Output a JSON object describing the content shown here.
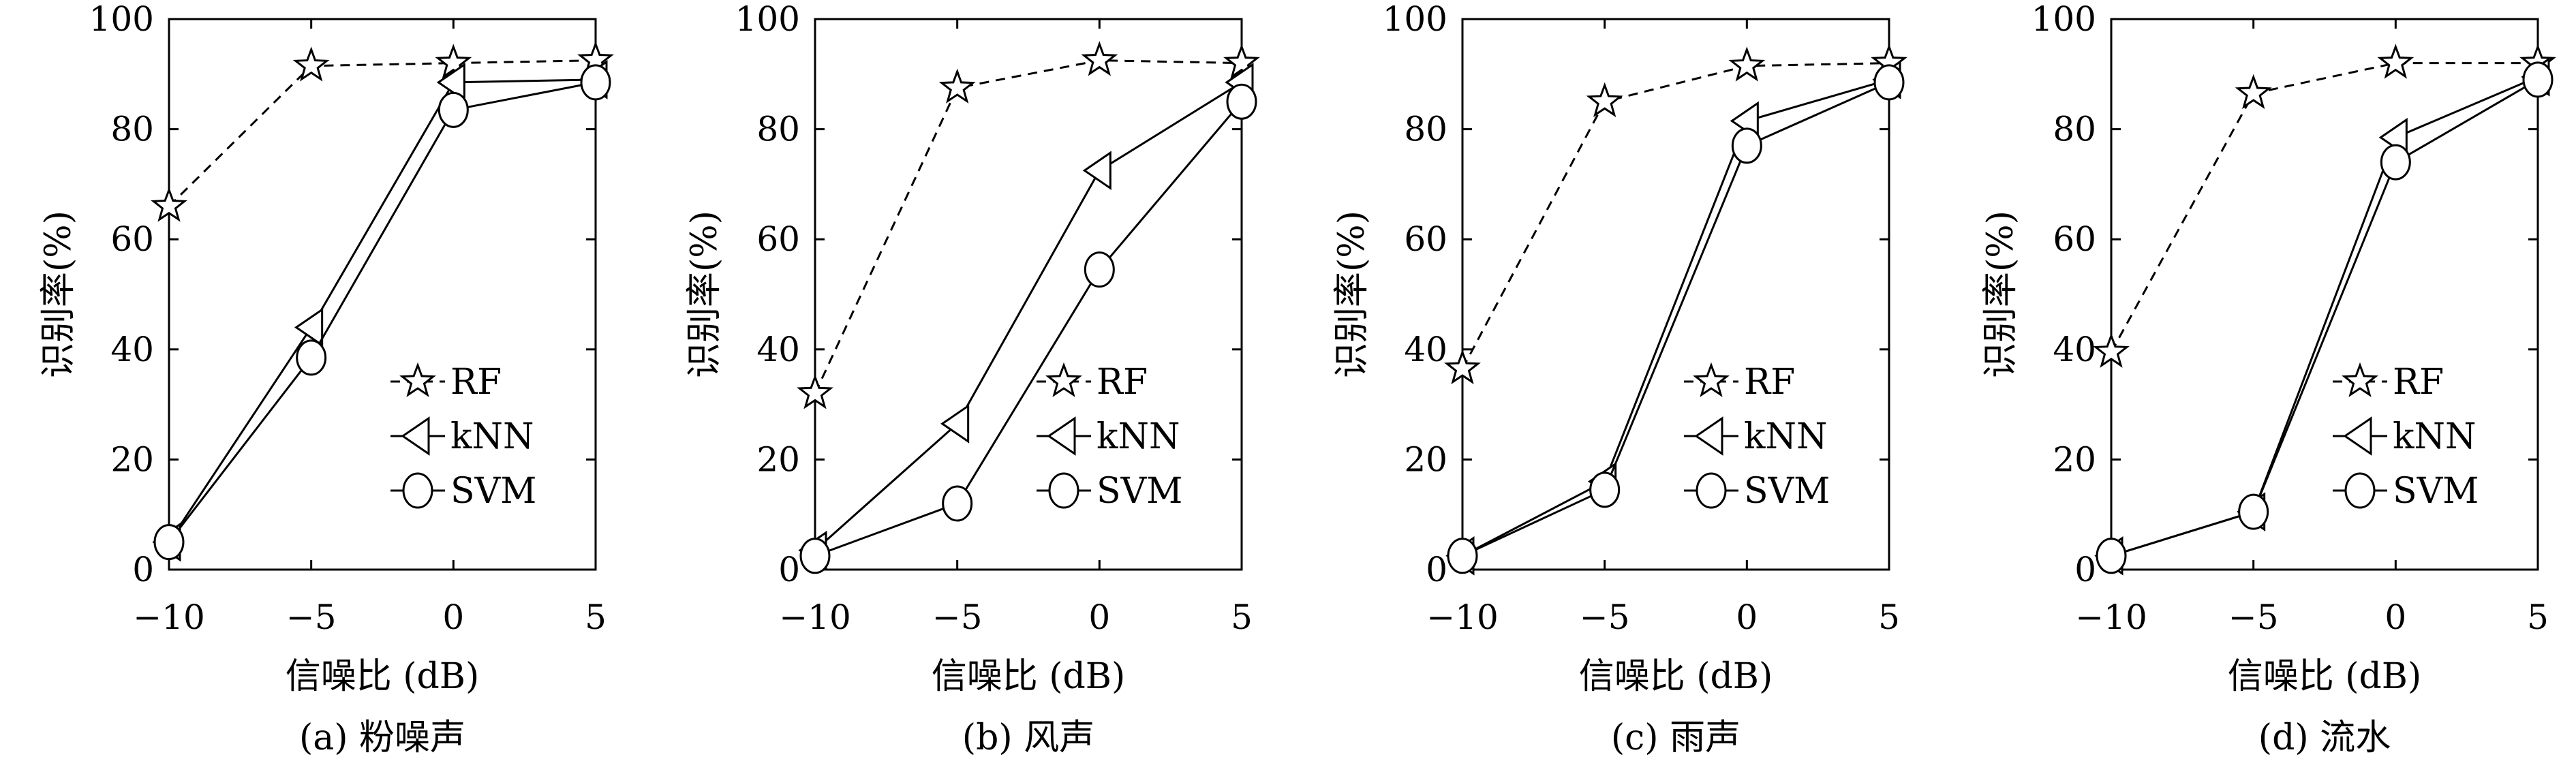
{
  "chart_data": [
    {
      "type": "line",
      "caption": "(a) 粉噪声",
      "xlabel": "信噪比 (dB)",
      "ylabel": "识别率(%)",
      "x": [
        -10,
        -5,
        0,
        5
      ],
      "xticks": [
        "−10",
        "−5",
        "0",
        "5"
      ],
      "yticks": [
        "0",
        "20",
        "40",
        "60",
        "80",
        "100"
      ],
      "xlim": [
        -10,
        5
      ],
      "ylim": [
        0,
        100
      ],
      "grid": false,
      "legend_position": "lower-right",
      "series": [
        {
          "name": "RF",
          "marker": "star",
          "dash": "dashed",
          "values": [
            66,
            91.5,
            92,
            92.5
          ]
        },
        {
          "name": "kNN",
          "marker": "triangle-left",
          "dash": "solid",
          "values": [
            5,
            44,
            88.5,
            89
          ]
        },
        {
          "name": "SVM",
          "marker": "circle",
          "dash": "solid",
          "values": [
            5,
            38.5,
            83.5,
            88.5
          ]
        }
      ]
    },
    {
      "type": "line",
      "caption": "(b) 风声",
      "xlabel": "信噪比 (dB)",
      "ylabel": "识别率(%)",
      "x": [
        -10,
        -5,
        0,
        5
      ],
      "xticks": [
        "−10",
        "−5",
        "0",
        "5"
      ],
      "yticks": [
        "0",
        "20",
        "40",
        "60",
        "80",
        "100"
      ],
      "xlim": [
        -10,
        5
      ],
      "ylim": [
        0,
        100
      ],
      "grid": false,
      "legend_position": "lower-right",
      "series": [
        {
          "name": "RF",
          "marker": "star",
          "dash": "dashed",
          "values": [
            32,
            87.5,
            92.5,
            92
          ]
        },
        {
          "name": "kNN",
          "marker": "triangle-left",
          "dash": "solid",
          "values": [
            3.5,
            26.5,
            72.5,
            88.5
          ]
        },
        {
          "name": "SVM",
          "marker": "circle",
          "dash": "solid",
          "values": [
            2.5,
            12,
            54.5,
            85
          ]
        }
      ]
    },
    {
      "type": "line",
      "caption": "(c) 雨声",
      "xlabel": "信噪比 (dB)",
      "ylabel": "识别率(%)",
      "x": [
        -10,
        -5,
        0,
        5
      ],
      "xticks": [
        "−10",
        "−5",
        "0",
        "5"
      ],
      "yticks": [
        "0",
        "20",
        "40",
        "60",
        "80",
        "100"
      ],
      "xlim": [
        -10,
        5
      ],
      "ylim": [
        0,
        100
      ],
      "grid": false,
      "legend_position": "lower-right",
      "series": [
        {
          "name": "RF",
          "marker": "star",
          "dash": "dashed",
          "values": [
            36.5,
            85,
            91.5,
            92
          ]
        },
        {
          "name": "kNN",
          "marker": "triangle-left",
          "dash": "solid",
          "values": [
            2.5,
            16,
            81.5,
            89
          ]
        },
        {
          "name": "SVM",
          "marker": "circle",
          "dash": "solid",
          "values": [
            2.5,
            14.5,
            77,
            88.5
          ]
        }
      ]
    },
    {
      "type": "line",
      "caption": "(d) 流水",
      "xlabel": "信噪比 (dB)",
      "ylabel": "识别率(%)",
      "x": [
        -10,
        -5,
        0,
        5
      ],
      "xticks": [
        "−10",
        "−5",
        "0",
        "5"
      ],
      "yticks": [
        "0",
        "20",
        "40",
        "60",
        "80",
        "100"
      ],
      "xlim": [
        -10,
        5
      ],
      "ylim": [
        0,
        100
      ],
      "grid": false,
      "legend_position": "lower-right",
      "series": [
        {
          "name": "RF",
          "marker": "star",
          "dash": "dashed",
          "values": [
            39.5,
            86.5,
            92,
            92
          ]
        },
        {
          "name": "kNN",
          "marker": "triangle-left",
          "dash": "solid",
          "values": [
            2.5,
            10.5,
            78.5,
            89.5
          ]
        },
        {
          "name": "SVM",
          "marker": "circle",
          "dash": "solid",
          "values": [
            2.5,
            10.5,
            74,
            89
          ]
        }
      ]
    }
  ]
}
